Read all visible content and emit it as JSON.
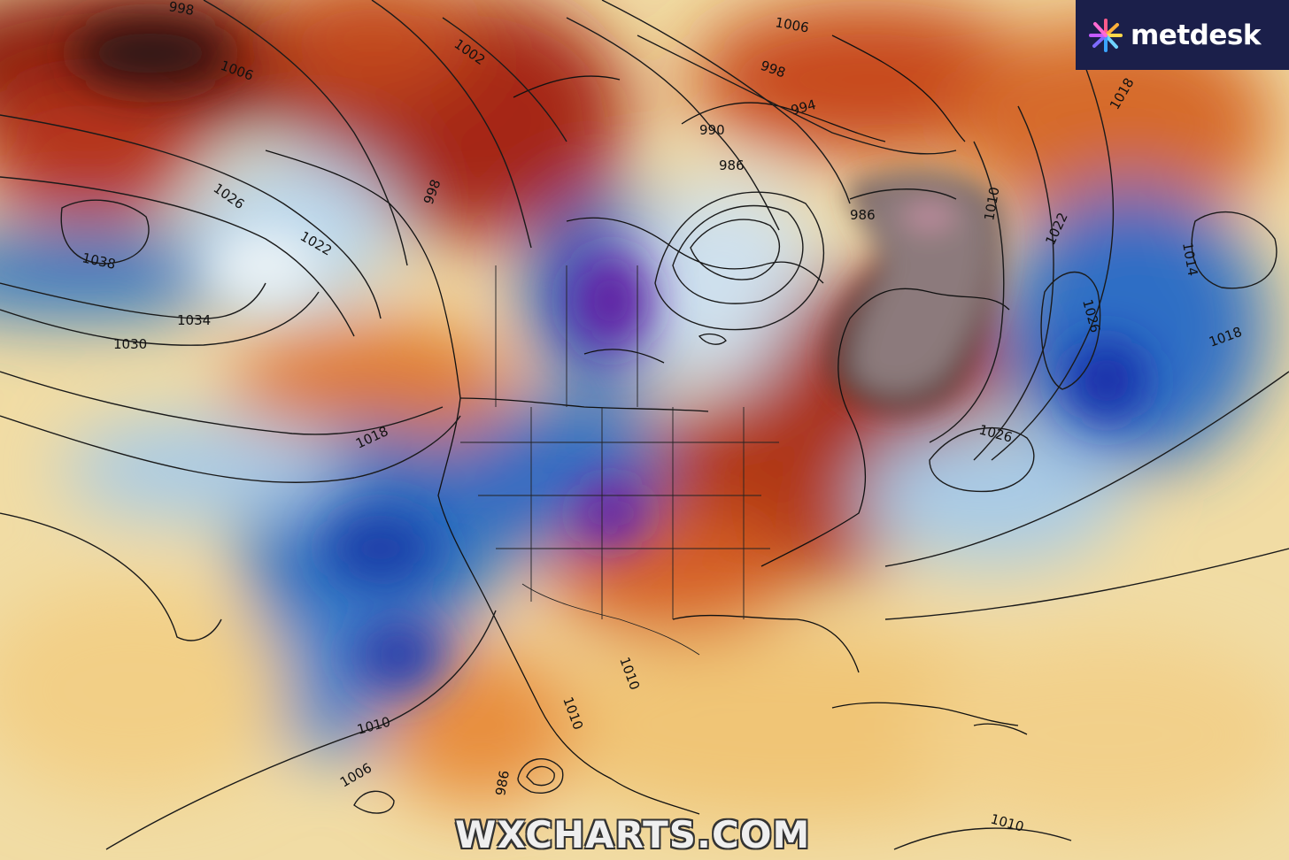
{
  "brand": {
    "name": "metdesk",
    "logo_icon": "star-burst-icon"
  },
  "watermark": "WXCHARTS.COM",
  "palette": {
    "very_warm": "#2e1b1b",
    "warm_dark": "#8a1e0d",
    "warm": "#d2561c",
    "mild_warm": "#ee9a45",
    "neutral_warm": "#f3dfa8",
    "neutral": "#eef3f5",
    "cool": "#9ec5e4",
    "cold": "#2f74c2",
    "very_cold": "#0c2a9b",
    "extreme_cold": "#6b1fa3",
    "extreme_warm_core": "#6a5a5e"
  },
  "isobar_labels": [
    "998",
    "1006",
    "1026",
    "1038",
    "1034",
    "1030",
    "1022",
    "1018",
    "998",
    "1002",
    "1006",
    "998",
    "994",
    "990",
    "986",
    "986",
    "1010",
    "1018",
    "1022",
    "1014",
    "1026",
    "1018",
    "1026",
    "1010",
    "1010",
    "1006",
    "986",
    "1010",
    "1010"
  ]
}
